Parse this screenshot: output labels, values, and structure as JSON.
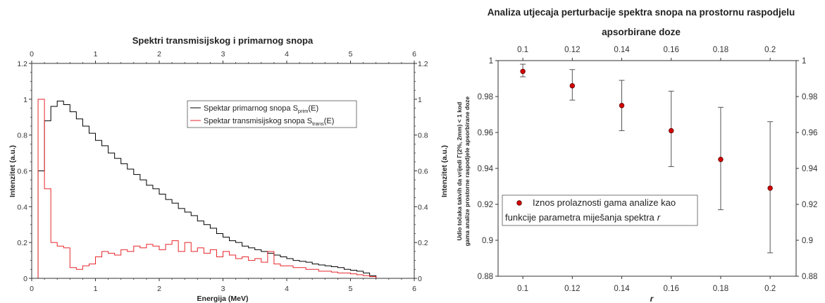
{
  "chart_data": [
    {
      "type": "line",
      "title": "Spektri transmisijskog i primarnog snopa",
      "xlabel": "Energija (MeV)",
      "ylabel": "Intenzitet (a.u.)",
      "ylabel_right": "Intenzitet (a.u.)",
      "xlim": [
        0,
        6
      ],
      "ylim": [
        0,
        1.2
      ],
      "xticks": [
        0,
        1,
        2,
        3,
        4,
        5,
        6
      ],
      "yticks": [
        0,
        0.2,
        0.4,
        0.6,
        0.8,
        1,
        1.2
      ],
      "grid": false,
      "legend_placement": "top-center",
      "x": [
        0,
        0.1,
        0.2,
        0.3,
        0.4,
        0.5,
        0.6,
        0.7,
        0.8,
        0.9,
        1,
        1.1,
        1.2,
        1.3,
        1.4,
        1.5,
        1.6,
        1.7,
        1.8,
        1.9,
        2,
        2.1,
        2.2,
        2.3,
        2.4,
        2.5,
        2.6,
        2.7,
        2.8,
        2.9,
        3,
        3.1,
        3.2,
        3.3,
        3.4,
        3.5,
        3.6,
        3.7,
        3.8,
        3.9,
        4,
        4.1,
        4.2,
        4.3,
        4.4,
        4.5,
        4.6,
        4.7,
        4.8,
        4.9,
        5,
        5.1,
        5.2,
        5.3,
        5.4
      ],
      "series": [
        {
          "name": "Spektar primarnog snopa S",
          "name_subscript": "prim",
          "name_suffix": "(E)",
          "color": "#000000",
          "values": [
            0,
            0.6,
            0.88,
            0.96,
            0.99,
            0.97,
            0.93,
            0.89,
            0.85,
            0.81,
            0.77,
            0.74,
            0.7,
            0.67,
            0.64,
            0.61,
            0.58,
            0.55,
            0.52,
            0.5,
            0.47,
            0.44,
            0.42,
            0.39,
            0.37,
            0.35,
            0.32,
            0.3,
            0.28,
            0.25,
            0.23,
            0.21,
            0.2,
            0.18,
            0.17,
            0.16,
            0.15,
            0.14,
            0.13,
            0.12,
            0.11,
            0.1,
            0.095,
            0.09,
            0.08,
            0.075,
            0.07,
            0.065,
            0.06,
            0.05,
            0.045,
            0.04,
            0.03,
            0.015,
            0
          ]
        },
        {
          "name": "Spektar transmisijskog snopa S",
          "name_subscript": "trans",
          "name_suffix": "(E)",
          "color": "#e8262b",
          "values": [
            0,
            1.0,
            0.5,
            0.2,
            0.18,
            0.17,
            0.06,
            0.05,
            0.07,
            0.08,
            0.12,
            0.15,
            0.14,
            0.13,
            0.16,
            0.15,
            0.18,
            0.17,
            0.19,
            0.18,
            0.16,
            0.19,
            0.21,
            0.15,
            0.2,
            0.15,
            0.17,
            0.14,
            0.16,
            0.12,
            0.15,
            0.13,
            0.11,
            0.12,
            0.1,
            0.11,
            0.09,
            0.15,
            0.08,
            0.07,
            0.07,
            0.06,
            0.06,
            0.05,
            0.05,
            0.04,
            0.04,
            0.035,
            0.03,
            0.03,
            0.025,
            0.02,
            0.015,
            0.01,
            0
          ]
        }
      ]
    },
    {
      "type": "scatter",
      "title_lines": [
        "Analiza utjecaja perturbacije spektra snopa na prostornu raspodjelu",
        "apsorbirane doze"
      ],
      "xlabel": "r",
      "ylabel_lines": [
        "Udio točaka takvih da vrijedi Γ(2%, 2mm) < 1 kod",
        "gama analize prostorne raspodjele apsorbirane doze"
      ],
      "xlim": [
        0.09,
        0.2105
      ],
      "ylim": [
        0.88,
        1
      ],
      "xticks": [
        0.1,
        0.12,
        0.14,
        0.16,
        0.18,
        0.2
      ],
      "yticks": [
        0.88,
        0.9,
        0.92,
        0.94,
        0.96,
        0.98,
        1
      ],
      "grid": false,
      "legend_placement": "lower-left",
      "legend_lines": [
        "Iznos prolaznosti gama analize kao",
        "funkcije parametra miješanja spektra"
      ],
      "legend_variable": "r",
      "color": "#d40000",
      "x": [
        0.1,
        0.12,
        0.14,
        0.16,
        0.18,
        0.2
      ],
      "y": [
        0.994,
        0.986,
        0.975,
        0.961,
        0.945,
        0.929
      ],
      "y_lower": [
        0.991,
        0.978,
        0.961,
        0.941,
        0.917,
        0.893
      ],
      "y_upper": [
        0.998,
        0.995,
        0.989,
        0.983,
        0.974,
        0.966
      ]
    }
  ]
}
